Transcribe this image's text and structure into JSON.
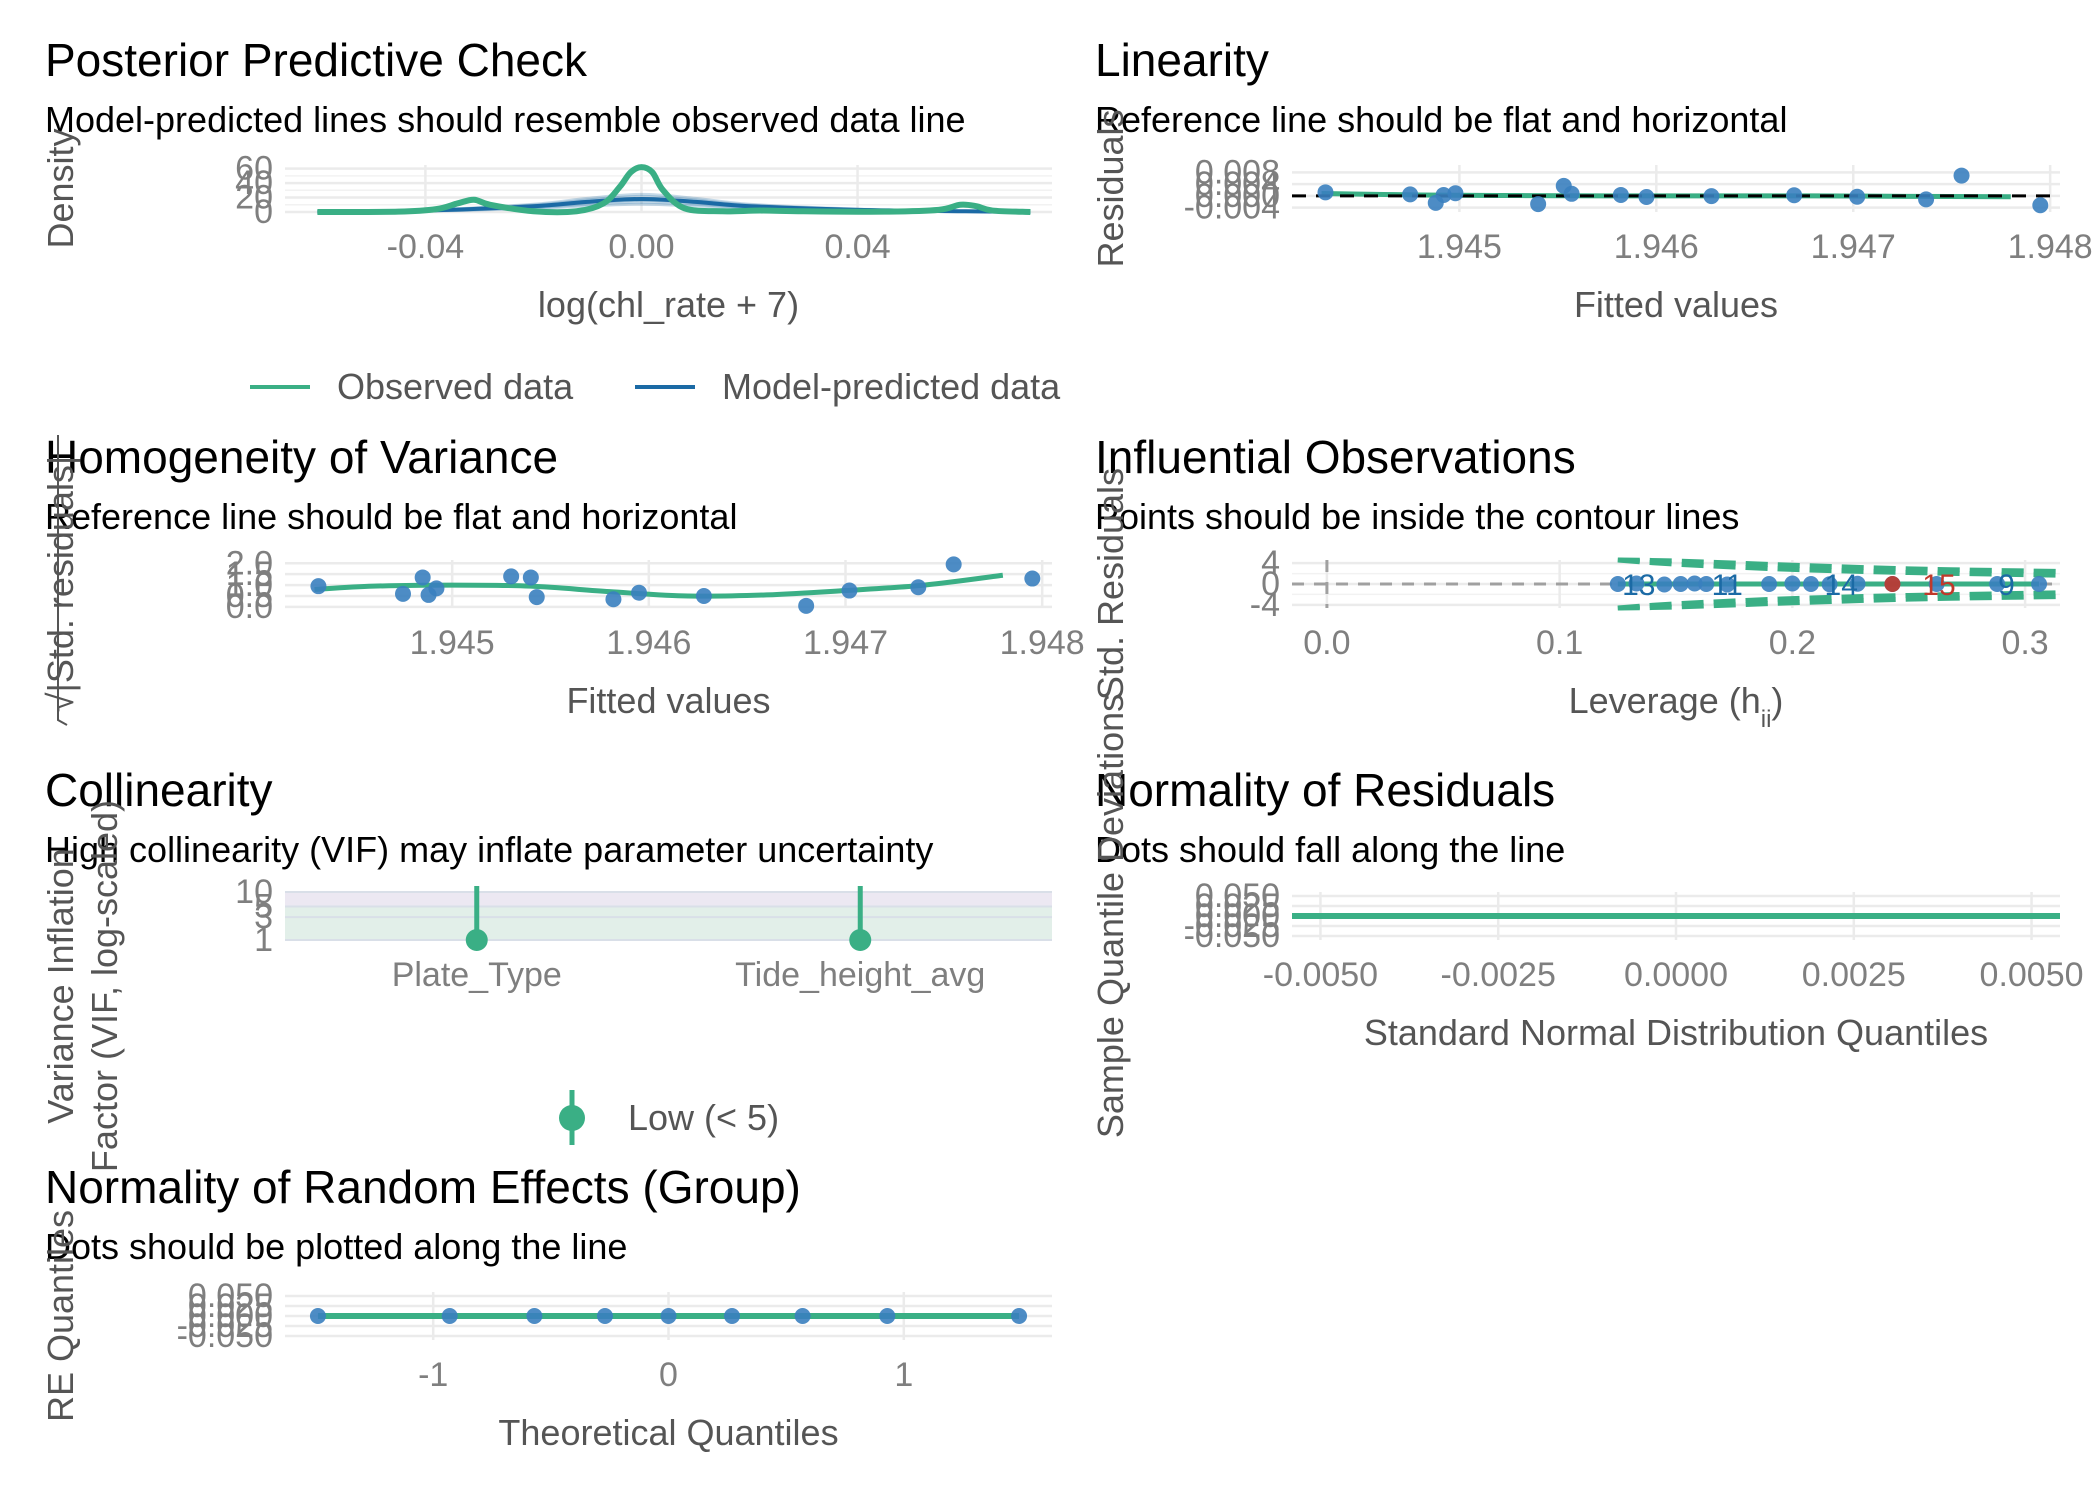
{
  "colors": {
    "observed": "#3aaf85",
    "predicted": "#1b6aa5",
    "points": "#3a7fbf",
    "influential": "#c0392b",
    "grid": "#ebebeb",
    "reference": "#000000"
  },
  "chart_data": [
    {
      "id": "ppc",
      "type": "line",
      "title": "Posterior Predictive Check",
      "subtitle": "Model-predicted lines should resemble observed data line",
      "xlabel": "log(chl_rate + 7)",
      "ylabel": "Density",
      "xlim": [
        -0.066,
        0.076
      ],
      "ylim": [
        0,
        65
      ],
      "xticks": [
        -0.04,
        0.0,
        0.04
      ],
      "xtick_labels": [
        "-0.04",
        "0.00",
        "0.04"
      ],
      "yticks": [
        0,
        20,
        40,
        60
      ],
      "ytick_labels": [
        "0",
        "20",
        "40",
        "60"
      ],
      "legend": {
        "position": "bottom",
        "entries": [
          "Observed data",
          "Model-predicted data"
        ]
      },
      "series": [
        {
          "name": "Observed data",
          "x": [
            -0.06,
            -0.045,
            -0.038,
            -0.034,
            -0.031,
            -0.028,
            -0.02,
            -0.012,
            -0.007,
            -0.004,
            -0.002,
            0.0,
            0.002,
            0.004,
            0.008,
            0.015,
            0.022,
            0.03,
            0.045,
            0.055,
            0.059,
            0.062,
            0.065,
            0.072
          ],
          "y": [
            0,
            0.5,
            4,
            12,
            17,
            10,
            1,
            1,
            12,
            35,
            55,
            62,
            55,
            30,
            5,
            1,
            2,
            1,
            0.5,
            3,
            10,
            8,
            2,
            0
          ]
        },
        {
          "name": "Model-predicted data",
          "x": [
            -0.06,
            -0.04,
            -0.02,
            -0.01,
            0.0,
            0.01,
            0.02,
            0.04,
            0.06,
            0.072
          ],
          "y": [
            0,
            2,
            8,
            14,
            18,
            14,
            8,
            3,
            1,
            0
          ]
        }
      ]
    },
    {
      "id": "linearity",
      "type": "scatter",
      "title": "Linearity",
      "subtitle": "Reference line should be flat and horizontal",
      "xlabel": "Fitted values",
      "ylabel": "Residuals",
      "xlim": [
        1.94415,
        1.94805
      ],
      "ylim": [
        -0.0055,
        0.0105
      ],
      "xticks": [
        1.945,
        1.946,
        1.947,
        1.948
      ],
      "xtick_labels": [
        "1.945",
        "1.946",
        "1.947",
        "1.948"
      ],
      "yticks": [
        -0.004,
        0.0,
        0.004,
        0.008
      ],
      "ytick_labels": [
        "-0.004",
        "0.000",
        "0.004",
        "0.008"
      ],
      "points": {
        "x": [
          1.94432,
          1.94475,
          1.94488,
          1.94492,
          1.94498,
          1.9454,
          1.94553,
          1.94557,
          1.94582,
          1.94595,
          1.94628,
          1.9467,
          1.94702,
          1.94737,
          1.94755,
          1.94795
        ],
        "y": [
          0.0012,
          0.0005,
          -0.0024,
          0.0003,
          0.0009,
          -0.0028,
          0.0034,
          0.0007,
          0.0003,
          -0.0004,
          -0.0001,
          0.0002,
          -0.0003,
          -0.0012,
          0.0069,
          -0.0032
        ]
      },
      "smooth": {
        "x": [
          1.9443,
          1.9448,
          1.9453,
          1.9458,
          1.9463,
          1.9468,
          1.9473,
          1.9478
        ],
        "y": [
          0.0008,
          0.0003,
          0.0001,
          0.0,
          0.0,
          0.0,
          -0.0002,
          -0.0003
        ]
      },
      "reference_y": 0
    },
    {
      "id": "homogeneity",
      "type": "scatter",
      "title": "Homogeneity of Variance",
      "subtitle": "Reference line should be flat and horizontal",
      "xlabel": "Fitted values",
      "ylabel": "√|Std. residuals|",
      "xlim": [
        1.94415,
        1.94805
      ],
      "ylim": [
        -0.05,
        2.15
      ],
      "xticks": [
        1.945,
        1.946,
        1.947,
        1.948
      ],
      "xtick_labels": [
        "1.945",
        "1.946",
        "1.947",
        "1.948"
      ],
      "yticks": [
        0.0,
        0.5,
        1.0,
        1.5,
        2.0
      ],
      "ytick_labels": [
        "0.0",
        "0.5",
        "1.0",
        "1.5",
        "2.0"
      ],
      "points": {
        "x": [
          1.94432,
          1.94475,
          1.94485,
          1.94488,
          1.94492,
          1.9453,
          1.9454,
          1.94543,
          1.94582,
          1.94595,
          1.94628,
          1.9468,
          1.94702,
          1.94737,
          1.94755,
          1.94795
        ],
        "y": [
          0.95,
          0.6,
          1.35,
          0.55,
          0.85,
          1.4,
          1.35,
          0.45,
          0.35,
          0.65,
          0.5,
          0.05,
          0.75,
          0.9,
          1.95,
          1.3
        ]
      },
      "smooth": {
        "x": [
          1.9443,
          1.9446,
          1.945,
          1.9454,
          1.9458,
          1.9462,
          1.9466,
          1.947,
          1.9474,
          1.9478
        ],
        "y": [
          0.8,
          0.95,
          1.0,
          0.95,
          0.7,
          0.5,
          0.55,
          0.75,
          1.0,
          1.45
        ]
      }
    },
    {
      "id": "influential",
      "type": "scatter",
      "title": "Influential Observations",
      "subtitle": "Points should be inside the contour lines",
      "xlabel": "Leverage (h",
      "xlabel_sub": "ii",
      "xlabel_end": ")",
      "ylabel": "Std. Residuals",
      "xlim": [
        -0.015,
        0.315
      ],
      "ylim": [
        -4.6,
        4.6
      ],
      "xticks": [
        0.0,
        0.1,
        0.2,
        0.3
      ],
      "xtick_labels": [
        "0.0",
        "0.1",
        "0.2",
        "0.3"
      ],
      "yticks": [
        -4,
        0,
        4
      ],
      "ytick_labels": [
        "-4",
        "0",
        "4"
      ],
      "points": {
        "x": [
          0.125,
          0.133,
          0.145,
          0.152,
          0.158,
          0.163,
          0.172,
          0.19,
          0.2,
          0.208,
          0.216,
          0.228,
          0.243,
          0.262,
          0.288,
          0.306
        ],
        "y": [
          0,
          0.1,
          -0.1,
          0,
          0.1,
          0,
          -0.1,
          0,
          0.1,
          0,
          -0.05,
          0.05,
          0,
          0,
          0,
          0
        ]
      },
      "point_labels": [
        {
          "text": "13",
          "x": 0.134,
          "y": 0,
          "kind": "normal"
        },
        {
          "text": "11",
          "x": 0.172,
          "y": 0,
          "kind": "normal"
        },
        {
          "text": "14",
          "x": 0.221,
          "y": 0,
          "kind": "normal"
        },
        {
          "text": "15",
          "x": 0.263,
          "y": 0,
          "kind": "influential"
        },
        {
          "text": "9",
          "x": 0.292,
          "y": 0,
          "kind": "normal"
        }
      ],
      "influential_points": {
        "x": [
          0.243
        ],
        "y": [
          0
        ]
      },
      "reference_x": 0,
      "reference_y": 0
    },
    {
      "id": "collinearity",
      "type": "scatter",
      "title": "Collinearity",
      "subtitle": "High collinearity (VIF) may inflate parameter uncertainty",
      "xlabel": "",
      "ylabel": "Variance Inflation Factor (VIF, log-scaled)",
      "ylabel_lines": [
        "Variance Inflation",
        "Factor (VIF, log-scaled)"
      ],
      "log_y": true,
      "ylim": [
        1,
        10
      ],
      "categories": [
        "Plate_Type",
        "Tide_height_avg"
      ],
      "yticks": [
        1,
        3,
        5,
        10
      ],
      "ytick_labels": [
        "1",
        "3",
        "5",
        "10"
      ],
      "values": [
        1,
        1
      ],
      "legend": {
        "position": "bottom",
        "entries": [
          "Low (< 5)"
        ]
      }
    },
    {
      "id": "normality_resid",
      "type": "line",
      "title": "Normality of Residuals",
      "subtitle": "Dots should fall along the line",
      "xlabel": "Standard Normal Distribution Quantiles",
      "ylabel": "Sample Quantile Deviations",
      "xlim": [
        -0.0054,
        0.0054
      ],
      "ylim": [
        -0.06,
        0.06
      ],
      "xticks": [
        -0.005,
        -0.0025,
        0.0,
        0.0025,
        0.005
      ],
      "xtick_labels": [
        "-0.0050",
        "-0.0025",
        "0.0000",
        "0.0025",
        "0.0050"
      ],
      "yticks": [
        -0.05,
        -0.025,
        0.0,
        0.025,
        0.05
      ],
      "ytick_labels": [
        "-0.050",
        "-0.025",
        "0.000",
        "0.025",
        "0.050"
      ],
      "line": {
        "x": [
          -0.0054,
          0.0054
        ],
        "y": [
          0,
          0
        ]
      }
    },
    {
      "id": "normality_re",
      "type": "scatter",
      "title": "Normality of Random Effects (Group)",
      "subtitle": "Dots should be plotted along the line",
      "xlabel": "Theoretical Quantiles",
      "ylabel": "RE Quantiles",
      "xlim": [
        -1.63,
        1.63
      ],
      "ylim": [
        -0.06,
        0.06
      ],
      "xticks": [
        -1,
        0,
        1
      ],
      "xtick_labels": [
        "-1",
        "0",
        "1"
      ],
      "yticks": [
        -0.05,
        -0.025,
        0.0,
        0.025,
        0.05
      ],
      "ytick_labels": [
        "-0.050",
        "-0.025",
        "0.000",
        "0.025",
        "0.050"
      ],
      "points": {
        "x": [
          -1.49,
          -0.93,
          -0.57,
          -0.27,
          0.0,
          0.27,
          0.57,
          0.93,
          1.49
        ],
        "y": [
          0,
          0,
          0,
          0,
          0,
          0,
          0,
          0,
          0
        ]
      },
      "line": {
        "x": [
          -1.49,
          1.49
        ],
        "y": [
          0,
          0
        ]
      }
    }
  ]
}
